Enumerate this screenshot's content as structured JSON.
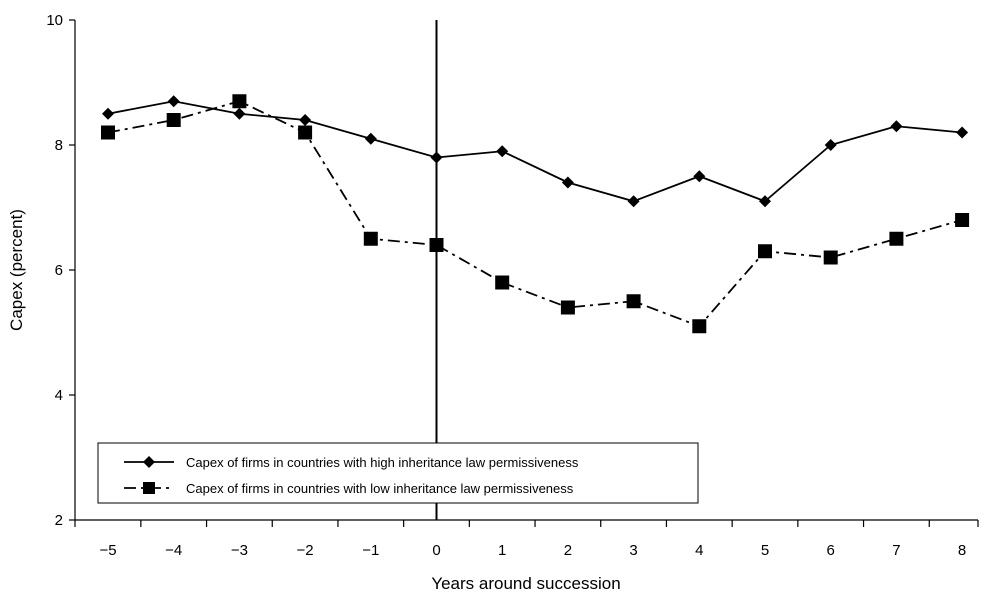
{
  "chart_data": {
    "type": "line",
    "title": "",
    "xlabel": "Years around succession",
    "ylabel": "Capex (percent)",
    "x": [
      -5,
      -4,
      -3,
      -2,
      -1,
      0,
      1,
      2,
      3,
      4,
      5,
      6,
      7,
      8
    ],
    "x_tick_labels": [
      "−5",
      "−4",
      "−3",
      "−2",
      "−1",
      "0",
      "1",
      "2",
      "3",
      "4",
      "5",
      "6",
      "7",
      "8"
    ],
    "y_ticks": [
      2,
      4,
      6,
      8,
      10
    ],
    "y_tick_labels": [
      "2",
      "4",
      "6",
      "8",
      "10"
    ],
    "ylim": [
      2,
      10
    ],
    "grid": false,
    "vertical_reference_line_x": 0,
    "legend_position": "bottom-left",
    "series": [
      {
        "name": "Capex of firms in countries with high inheritance law permissiveness",
        "marker": "diamond",
        "line_style": "solid",
        "values": [
          8.5,
          8.7,
          8.5,
          8.4,
          8.1,
          7.8,
          7.9,
          7.4,
          7.1,
          7.5,
          7.1,
          8.0,
          8.3,
          8.2
        ]
      },
      {
        "name": "Capex of firms in countries with low inheritance law permissiveness",
        "marker": "square",
        "line_style": "dash-dot",
        "values": [
          8.2,
          8.4,
          8.7,
          8.2,
          6.5,
          6.4,
          5.8,
          5.4,
          5.5,
          5.1,
          6.3,
          6.2,
          6.5,
          6.8
        ]
      }
    ]
  }
}
